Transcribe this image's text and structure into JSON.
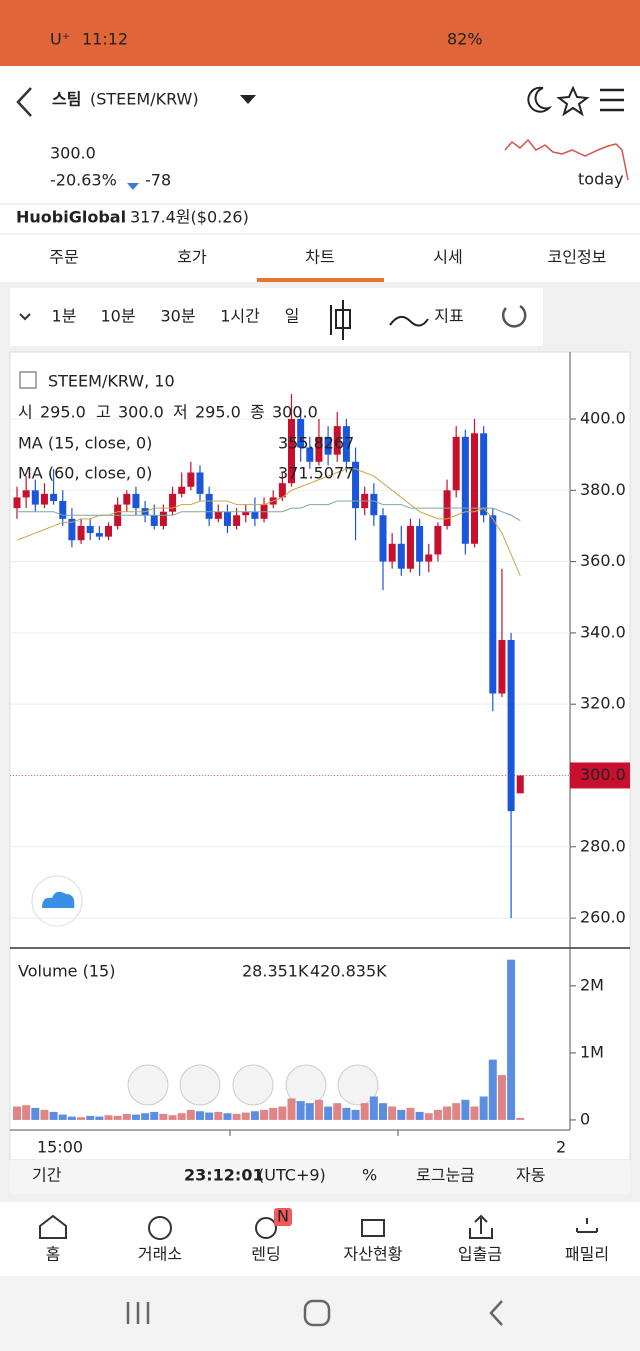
{
  "status_bar": {
    "carrier": "U⁺",
    "time": "11:12",
    "battery": "82%"
  },
  "header": {
    "name": "스팀",
    "pair": "(STEEM/KRW)"
  },
  "price": {
    "last": "300.0",
    "change_pct": "-20.63%",
    "change": "-78",
    "sparkline_label": "today"
  },
  "exchange": {
    "name": "HuobiGlobal",
    "price": "317.4원($0.26)"
  },
  "tabs": [
    "주문",
    "호가",
    "차트",
    "시세",
    "코인정보"
  ],
  "intervals": [
    "1분",
    "10분",
    "30분",
    "1시간",
    "일"
  ],
  "indicator_button": "지표",
  "chart_data": [
    {
      "type": "candlestick",
      "title": "STEEM/KRW, 10",
      "ohlc_legend": [
        "시",
        "295.0",
        "고",
        "300.0",
        "저",
        "295.0",
        "종",
        "300.0"
      ],
      "up_color": "#c8102e",
      "down_color": "#1a56db",
      "open": [
        375,
        378,
        380,
        376,
        379,
        377,
        372,
        366,
        370,
        368,
        367,
        370,
        376,
        379,
        375,
        373,
        370,
        374,
        379,
        381,
        385,
        379,
        372,
        374,
        370,
        373,
        374,
        372,
        376,
        378,
        382,
        400,
        392,
        388,
        395,
        390,
        398,
        388,
        375,
        379,
        373,
        360,
        365,
        358,
        370,
        360,
        362,
        370,
        380,
        395,
        365,
        396,
        373,
        323,
        338,
        295
      ],
      "close": [
        378,
        380,
        376,
        379,
        377,
        372,
        366,
        370,
        368,
        367,
        370,
        376,
        379,
        375,
        373,
        370,
        374,
        379,
        381,
        385,
        379,
        372,
        374,
        370,
        373,
        374,
        372,
        376,
        378,
        382,
        400,
        392,
        388,
        395,
        390,
        398,
        388,
        375,
        379,
        373,
        360,
        365,
        358,
        370,
        360,
        362,
        370,
        380,
        395,
        365,
        396,
        373,
        323,
        338,
        290,
        300
      ],
      "high": [
        381,
        384,
        383,
        382,
        386,
        380,
        375,
        372,
        372,
        370,
        371,
        378,
        380,
        381,
        377,
        376,
        376,
        381,
        385,
        388,
        387,
        381,
        376,
        376,
        375,
        376,
        378,
        378,
        380,
        385,
        407,
        403,
        395,
        400,
        398,
        402,
        400,
        392,
        381,
        382,
        375,
        368,
        370,
        372,
        372,
        365,
        371,
        383,
        398,
        397,
        400,
        398,
        375,
        358,
        340,
        300
      ],
      "low": [
        372,
        375,
        374,
        375,
        376,
        370,
        364,
        365,
        366,
        366,
        366,
        369,
        374,
        373,
        371,
        369,
        369,
        373,
        378,
        380,
        377,
        370,
        371,
        368,
        369,
        371,
        370,
        371,
        375,
        377,
        381,
        388,
        386,
        387,
        387,
        388,
        385,
        366,
        373,
        370,
        352,
        358,
        356,
        357,
        356,
        357,
        360,
        369,
        378,
        362,
        364,
        371,
        318,
        322,
        260,
        295
      ],
      "series": [
        {
          "name": "MA (15, close, 0)",
          "color": "#c8a84a",
          "value_label": "355.8267",
          "values": [
            366,
            367,
            368,
            369,
            370,
            371,
            371,
            372,
            372,
            373,
            373,
            374,
            374,
            374,
            374,
            375,
            375,
            375,
            376,
            376,
            377,
            377,
            377,
            377,
            376,
            376,
            376,
            376,
            377,
            378,
            380,
            381,
            382,
            383,
            384,
            385,
            386,
            386,
            385,
            384,
            382,
            380,
            378,
            376,
            374,
            373,
            372,
            372,
            373,
            374,
            374,
            375,
            372,
            368,
            362,
            356
          ]
        },
        {
          "name": "MA (60, close, 0)",
          "color": "#7fa89a",
          "value_label": "371.5077",
          "values": [
            374,
            374,
            374,
            374,
            374,
            373,
            373,
            373,
            373,
            373,
            373,
            373,
            373,
            373,
            373,
            373,
            373,
            373,
            374,
            374,
            374,
            374,
            374,
            374,
            374,
            374,
            374,
            374,
            374,
            374,
            375,
            375,
            376,
            376,
            376,
            377,
            377,
            377,
            377,
            377,
            376,
            376,
            376,
            375,
            375,
            375,
            375,
            375,
            375,
            375,
            375,
            375,
            375,
            374,
            373,
            371.5
          ]
        }
      ],
      "ylim": [
        251.6,
        418.8
      ],
      "yticks": [
        {
          "value": 260,
          "label": "260.0"
        },
        {
          "value": 280,
          "label": "280.0"
        },
        {
          "value": 300,
          "label": "300.0"
        },
        {
          "value": 320,
          "label": "320.0"
        },
        {
          "value": 340,
          "label": "340.0"
        },
        {
          "value": 360,
          "label": "360.0"
        },
        {
          "value": 380,
          "label": "380.0"
        },
        {
          "value": 400,
          "label": "400.0"
        }
      ],
      "price_line": {
        "value": 300,
        "label": "300.0"
      }
    },
    {
      "type": "bar",
      "title": "Volume (15)",
      "legend_values": [
        "28.351K",
        "420.835K"
      ],
      "values": [
        200000,
        220000,
        180000,
        150000,
        120000,
        80000,
        50000,
        40000,
        60000,
        50000,
        70000,
        60000,
        90000,
        80000,
        100000,
        120000,
        90000,
        70000,
        100000,
        150000,
        130000,
        110000,
        120000,
        100000,
        90000,
        110000,
        130000,
        150000,
        180000,
        200000,
        320000,
        280000,
        250000,
        300000,
        200000,
        250000,
        180000,
        150000,
        250000,
        350000,
        250000,
        200000,
        150000,
        180000,
        120000,
        100000,
        150000,
        200000,
        250000,
        300000,
        200000,
        350000,
        900000,
        670000,
        2390000,
        30000
      ],
      "up_color": "#e08585",
      "down_color": "#5b8ee0",
      "ylim": [
        -150000,
        2460000
      ],
      "yticks": [
        0,
        {
          "value": 1000000,
          "label": "1M"
        },
        {
          "value": 2000000,
          "label": "2M"
        }
      ],
      "x_labels": [
        "15:00",
        "2"
      ]
    }
  ],
  "bottom_bar": {
    "period": "기간",
    "time": "23:12:01",
    "timezone": "(UTC+9)",
    "percent": "%",
    "log": "로그눈금",
    "auto": "자동"
  },
  "nav": {
    "badge": "N",
    "items": [
      "홈",
      "거래소",
      "렌딩",
      "자산현황",
      "입출금",
      "패밀리"
    ]
  }
}
